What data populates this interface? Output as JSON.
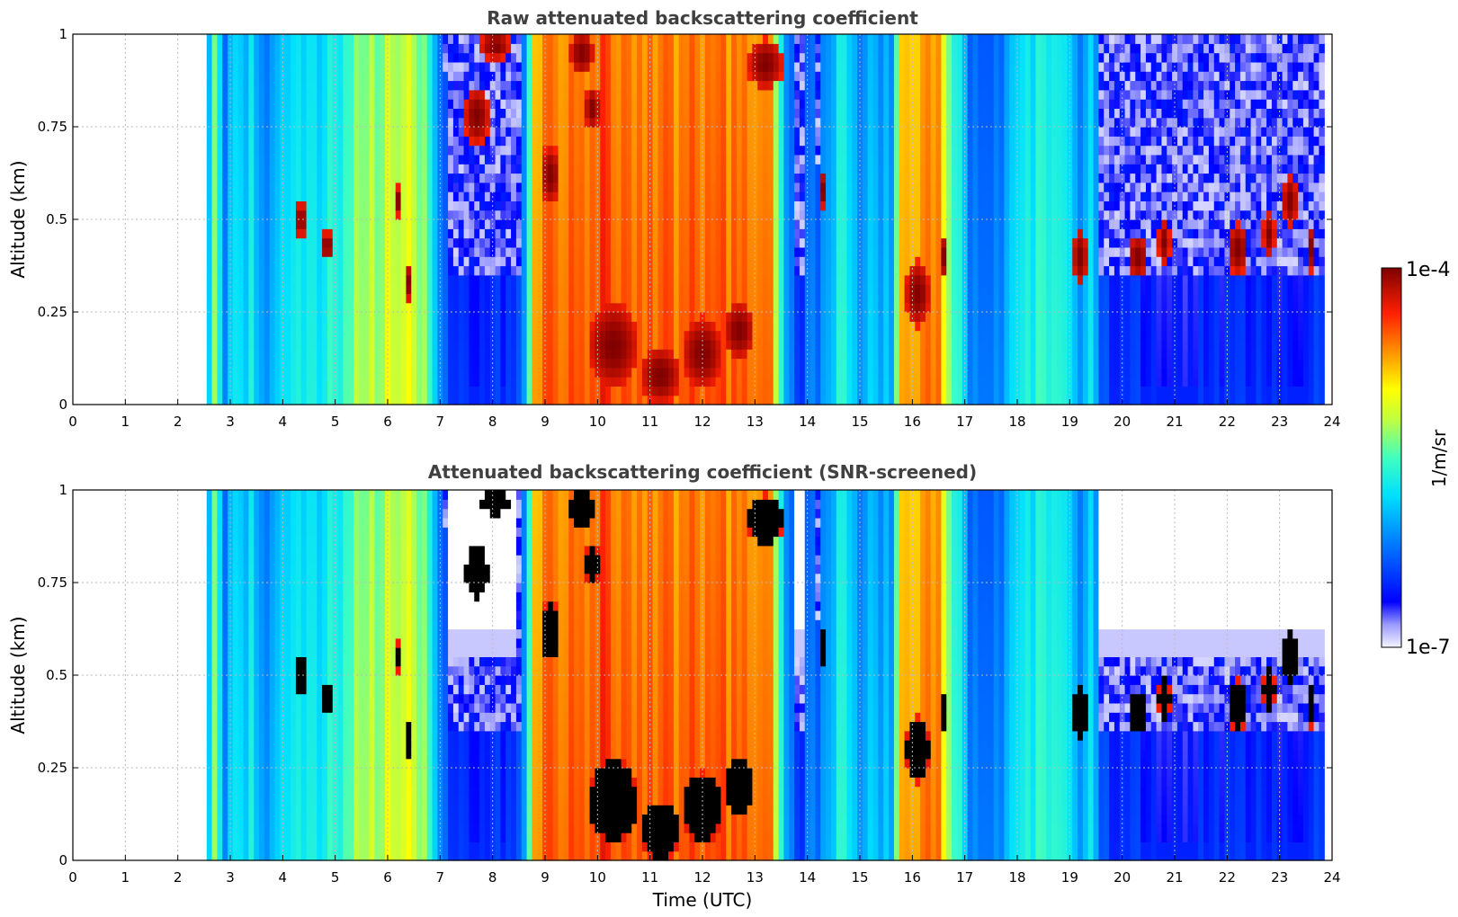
{
  "chart_data": [
    {
      "type": "heatmap",
      "title": "Raw attenuated backscattering coefficient",
      "xlabel": "",
      "ylabel": "Altitude (km)",
      "xlim": [
        0,
        24
      ],
      "ylim": [
        0,
        1
      ],
      "x_ticks": [
        "0",
        "1",
        "2",
        "3",
        "4",
        "5",
        "6",
        "7",
        "8",
        "9",
        "10",
        "11",
        "12",
        "13",
        "14",
        "15",
        "16",
        "17",
        "18",
        "19",
        "20",
        "21",
        "22",
        "23",
        "24"
      ],
      "y_ticks": [
        "0",
        "0.25",
        "0.5",
        "0.75",
        "1"
      ],
      "grid": true,
      "data_time_range": [
        2.55,
        23.85
      ],
      "screened": false
    },
    {
      "type": "heatmap",
      "title": "Attenuated backscattering coefficient (SNR-screened)",
      "xlabel": "Time (UTC)",
      "ylabel": "Altitude (km)",
      "xlim": [
        0,
        24
      ],
      "ylim": [
        0,
        1
      ],
      "x_ticks": [
        "0",
        "1",
        "2",
        "3",
        "4",
        "5",
        "6",
        "7",
        "8",
        "9",
        "10",
        "11",
        "12",
        "13",
        "14",
        "15",
        "16",
        "17",
        "18",
        "19",
        "20",
        "21",
        "22",
        "23",
        "24"
      ],
      "y_ticks": [
        "0",
        "0.25",
        "0.5",
        "0.75",
        "1"
      ],
      "grid": true,
      "data_time_range": [
        2.55,
        23.85
      ],
      "screened": true
    }
  ],
  "colorbar": {
    "label": "1/m/sr",
    "max_label": "1e-4",
    "min_label": "1e-7",
    "scale": "log",
    "colormap": "jet"
  }
}
